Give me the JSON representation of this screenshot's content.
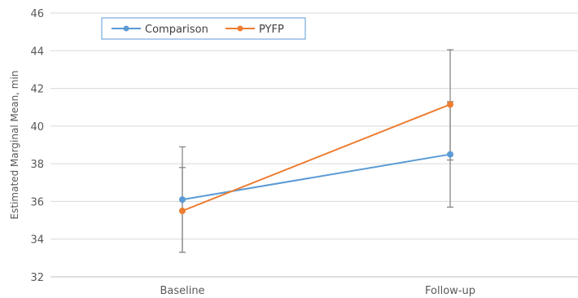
{
  "chart_data": {
    "type": "line",
    "title": "",
    "xlabel": "",
    "ylabel": "Estimated Marginal Mean, min",
    "categories": [
      "Baseline",
      "Follow-up"
    ],
    "ylim": [
      32,
      46
    ],
    "yticks": [
      32,
      34,
      36,
      38,
      40,
      42,
      44,
      46
    ],
    "grid": true,
    "legend_position": "top-left",
    "series": [
      {
        "name": "Comparison",
        "color": "#5B9BD5",
        "values": [
          36.1,
          38.5
        ],
        "error_low": [
          33.3,
          35.7
        ],
        "error_high": [
          38.9,
          41.3
        ]
      },
      {
        "name": "PYFP",
        "color": "#ED7D31",
        "values": [
          35.5,
          41.15
        ],
        "error_low": [
          33.3,
          38.2
        ],
        "error_high": [
          37.8,
          44.05
        ]
      }
    ]
  }
}
